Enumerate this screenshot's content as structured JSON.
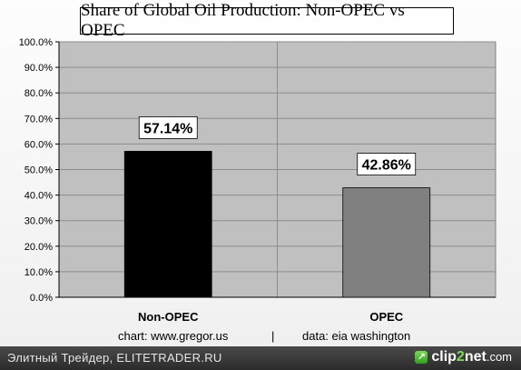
{
  "chart_data": {
    "type": "bar",
    "title": "Share of Global Oil Production: Non-OPEC vs OPEC",
    "categories": [
      "Non-OPEC",
      "OPEC"
    ],
    "values": [
      57.14,
      42.86
    ],
    "data_labels": [
      "57.14%",
      "42.86%"
    ],
    "bar_colors": [
      "#000000",
      "#808080"
    ],
    "ylim": [
      0,
      100
    ],
    "yticks": [
      0,
      10,
      20,
      30,
      40,
      50,
      60,
      70,
      80,
      90,
      100
    ],
    "ytick_labels": [
      "0.0%",
      "10.0%",
      "20.0%",
      "30.0%",
      "40.0%",
      "50.0%",
      "60.0%",
      "70.0%",
      "80.0%",
      "90.0%",
      "100.0%"
    ],
    "grid": "horizontal and vertical",
    "plot_background": "#c0c0c0",
    "legend": "none"
  },
  "credits": {
    "chart": "chart:  www.gregor.us",
    "separator": "|",
    "data": "data: eia washington"
  },
  "footer": {
    "left_text": "Элитный Трейдер, ELITETRADER.RU",
    "brand_prefix": "clip",
    "brand_accent": "2",
    "brand_suffix": "net",
    "brand_tld": ".com",
    "brand_icon_glyph": "↗"
  }
}
